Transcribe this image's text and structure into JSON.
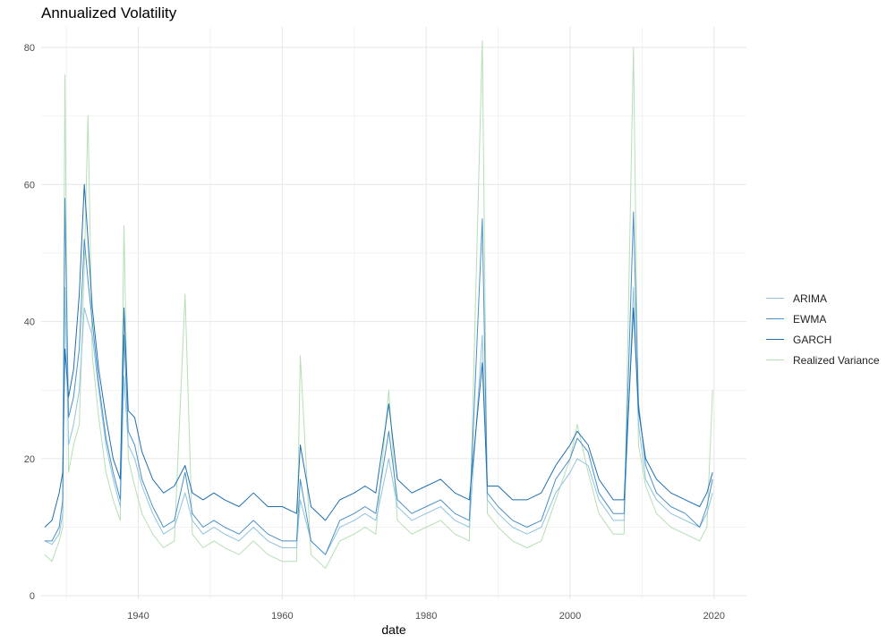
{
  "chart_data": {
    "type": "line",
    "title": "Annualized Volatility",
    "xlabel": "date",
    "ylabel": "",
    "xlim": [
      1926.5,
      2024.5
    ],
    "ylim": [
      -0.5,
      83
    ],
    "x_ticks": [
      1940,
      1960,
      1980,
      2000,
      2020
    ],
    "y_ticks": [
      0,
      20,
      40,
      60,
      80
    ],
    "grid": true,
    "legend_position": "right",
    "series": [
      {
        "name": "ARIMA",
        "color": "#8fc3dc",
        "x": [
          1927,
          1928,
          1929,
          1929.5,
          1929.8,
          1930.3,
          1931,
          1931.8,
          1932.5,
          1933,
          1933.6,
          1934.5,
          1935.5,
          1936.5,
          1937.5,
          1938,
          1938.6,
          1939.5,
          1940.5,
          1942,
          1943.5,
          1945,
          1946.5,
          1947.5,
          1949,
          1950.5,
          1952,
          1954,
          1956,
          1958,
          1960,
          1962,
          1962.5,
          1964,
          1966,
          1968,
          1970,
          1971.5,
          1973,
          1974.8,
          1976,
          1978,
          1980,
          1982,
          1984,
          1986,
          1987.8,
          1988.5,
          1990,
          1992,
          1994,
          1996,
          1998,
          2000,
          2001,
          2002.5,
          2004,
          2006,
          2007.5,
          2008.8,
          2009.5,
          2010.5,
          2012,
          2014,
          2016,
          2018,
          2019,
          2019.8
        ],
        "y": [
          8,
          7.5,
          9,
          12,
          45,
          22,
          25,
          30,
          42,
          40,
          38,
          30,
          22,
          17,
          13,
          32,
          22,
          20,
          16,
          12,
          9,
          10,
          15,
          11,
          9,
          10,
          9,
          8,
          10,
          8,
          7,
          7,
          14,
          8,
          6,
          10,
          11,
          12,
          11,
          20,
          13,
          11,
          12,
          13,
          11,
          10,
          38,
          14,
          12,
          10,
          9,
          10,
          15,
          18,
          20,
          19,
          14,
          11,
          11,
          45,
          25,
          17,
          14,
          12,
          11,
          10,
          12,
          15
        ]
      },
      {
        "name": "EWMA",
        "color": "#4a90c8",
        "x": [
          1927,
          1928,
          1929,
          1929.5,
          1929.8,
          1930.3,
          1931,
          1931.8,
          1932.5,
          1933,
          1933.6,
          1934.5,
          1935.5,
          1936.5,
          1937.5,
          1938,
          1938.6,
          1939.5,
          1940.5,
          1942,
          1943.5,
          1945,
          1946.5,
          1947.5,
          1949,
          1950.5,
          1952,
          1954,
          1956,
          1958,
          1960,
          1962,
          1962.5,
          1964,
          1966,
          1968,
          1970,
          1971.5,
          1973,
          1974.8,
          1976,
          1978,
          1980,
          1982,
          1984,
          1986,
          1987.8,
          1988.5,
          1990,
          1992,
          1994,
          1996,
          1998,
          2000,
          2001,
          2002.5,
          2004,
          2006,
          2007.5,
          2008.8,
          2009.5,
          2010.5,
          2012,
          2014,
          2016,
          2018,
          2019,
          2019.8
        ],
        "y": [
          8,
          8,
          10,
          14,
          58,
          26,
          29,
          36,
          52,
          46,
          40,
          31,
          23,
          18,
          14,
          38,
          24,
          22,
          17,
          13,
          10,
          11,
          18,
          12,
          10,
          11,
          10,
          9,
          11,
          9,
          8,
          8,
          17,
          8,
          6,
          11,
          12,
          13,
          12,
          24,
          14,
          12,
          13,
          14,
          12,
          11,
          55,
          15,
          13,
          11,
          10,
          11,
          17,
          20,
          23,
          21,
          15,
          12,
          12,
          56,
          28,
          19,
          15,
          13,
          12,
          10,
          13,
          17
        ]
      },
      {
        "name": "GARCH",
        "color": "#1f6fae",
        "x": [
          1927,
          1928,
          1929,
          1929.5,
          1929.8,
          1930.3,
          1931,
          1931.8,
          1932.5,
          1933,
          1933.6,
          1934.5,
          1935.5,
          1936.5,
          1937.5,
          1938,
          1938.6,
          1939.5,
          1940.5,
          1942,
          1943.5,
          1945,
          1946.5,
          1947.5,
          1949,
          1950.5,
          1952,
          1954,
          1956,
          1958,
          1960,
          1962,
          1962.5,
          1964,
          1966,
          1968,
          1970,
          1971.5,
          1973,
          1974.8,
          1976,
          1978,
          1980,
          1982,
          1984,
          1986,
          1987.8,
          1988.5,
          1990,
          1992,
          1994,
          1996,
          1998,
          2000,
          2001,
          2002.5,
          2004,
          2006,
          2007.5,
          2008.8,
          2009.5,
          2010.5,
          2012,
          2014,
          2016,
          2018,
          2019,
          2019.8
        ],
        "y": [
          10,
          11,
          15,
          18,
          36,
          29,
          33,
          44,
          60,
          52,
          42,
          33,
          26,
          20,
          17,
          42,
          27,
          26,
          21,
          17,
          15,
          16,
          19,
          15,
          14,
          15,
          14,
          13,
          15,
          13,
          13,
          12,
          22,
          13,
          11,
          14,
          15,
          16,
          15,
          28,
          17,
          15,
          16,
          17,
          15,
          14,
          34,
          16,
          16,
          14,
          14,
          15,
          19,
          22,
          24,
          22,
          17,
          14,
          14,
          42,
          27,
          20,
          17,
          15,
          14,
          13,
          15,
          18
        ]
      },
      {
        "name": "Realized Variance",
        "color": "#b6dfb6",
        "x": [
          1927,
          1928,
          1929,
          1929.5,
          1929.8,
          1930.3,
          1931,
          1931.8,
          1932.5,
          1933,
          1933.6,
          1934.5,
          1935.5,
          1936.5,
          1937.5,
          1938,
          1938.6,
          1939.5,
          1940.5,
          1942,
          1943.5,
          1945,
          1946.5,
          1947.5,
          1949,
          1950.5,
          1952,
          1954,
          1956,
          1958,
          1960,
          1962,
          1962.5,
          1964,
          1966,
          1968,
          1970,
          1971.5,
          1973,
          1974.8,
          1976,
          1978,
          1980,
          1982,
          1984,
          1986,
          1987.8,
          1988.5,
          1990,
          1992,
          1994,
          1996,
          1998,
          2000,
          2001,
          2002.5,
          2004,
          2006,
          2007.5,
          2008.8,
          2009.5,
          2010.5,
          2012,
          2014,
          2016,
          2018,
          2019,
          2019.8
        ],
        "y": [
          6,
          5,
          8,
          10,
          76,
          18,
          22,
          25,
          48,
          70,
          35,
          26,
          18,
          14,
          11,
          54,
          20,
          16,
          12,
          9,
          7,
          8,
          44,
          9,
          7,
          8,
          7,
          6,
          8,
          6,
          5,
          5,
          35,
          6,
          4,
          8,
          9,
          10,
          9,
          30,
          11,
          9,
          10,
          11,
          9,
          8,
          81,
          12,
          10,
          8,
          7,
          8,
          14,
          20,
          25,
          18,
          12,
          9,
          9,
          80,
          22,
          16,
          12,
          10,
          9,
          8,
          10,
          30
        ]
      }
    ]
  }
}
